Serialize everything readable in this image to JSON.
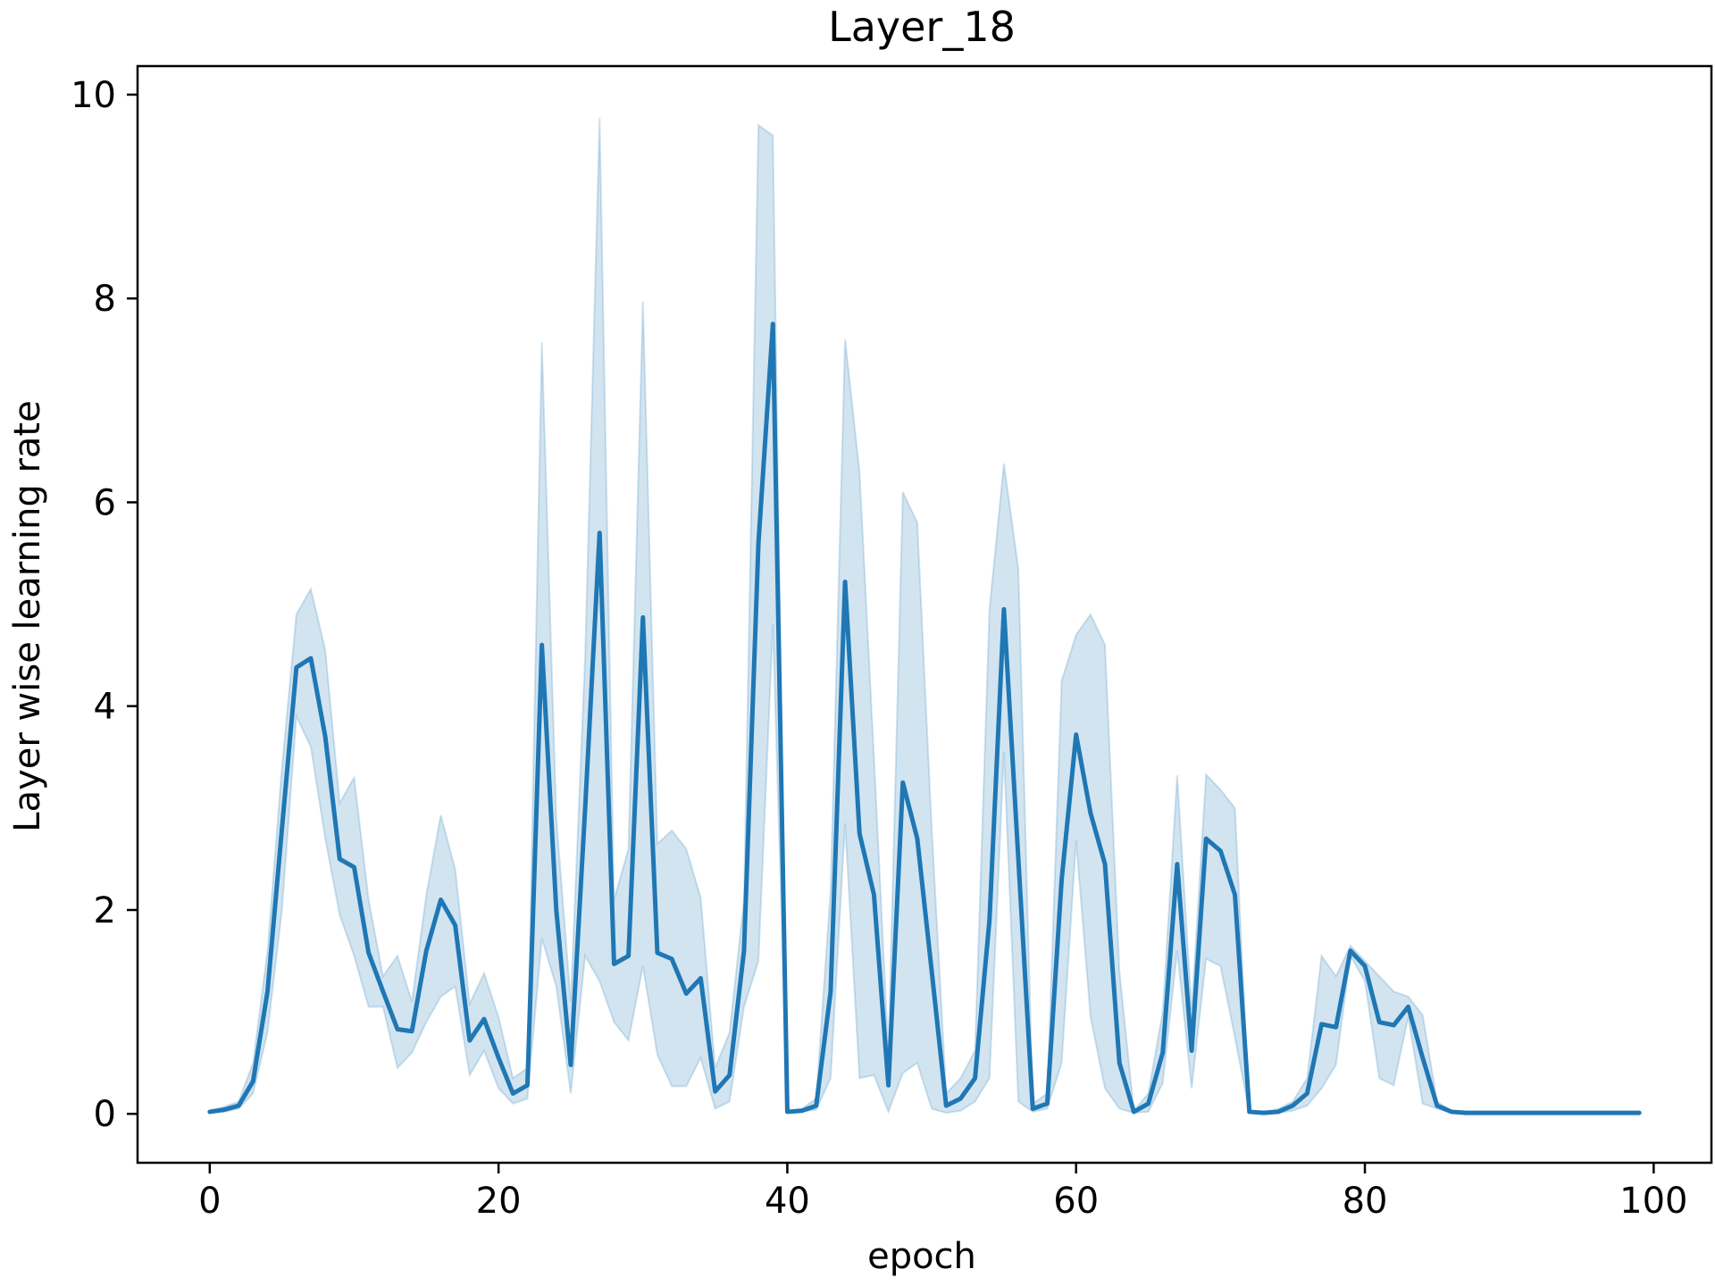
{
  "colors": {
    "line": "#1f77b4",
    "band": "#1f77b4",
    "axes": "#000000",
    "background": "#ffffff"
  },
  "chart_data": {
    "type": "line",
    "title": "Layer_18",
    "xlabel": "epoch",
    "ylabel": "Layer wise learning rate",
    "xlim": [
      -5,
      104
    ],
    "ylim": [
      -0.48,
      10.28
    ],
    "x_ticks": [
      0,
      20,
      40,
      60,
      80,
      100
    ],
    "y_ticks": [
      0,
      2,
      4,
      6,
      8,
      10
    ],
    "grid": false,
    "legend": "none",
    "series": [
      {
        "x": [
          0,
          1,
          2,
          3,
          4,
          5,
          6,
          7,
          8,
          9,
          10,
          11,
          12,
          13,
          14,
          15,
          16,
          17,
          18,
          19,
          20,
          21,
          22,
          23,
          24,
          25,
          26,
          27,
          28,
          29,
          30,
          31,
          32,
          33,
          34,
          35,
          36,
          37,
          38,
          39,
          40,
          41,
          42,
          43,
          44,
          45,
          46,
          47,
          48,
          49,
          50,
          51,
          52,
          53,
          54,
          55,
          56,
          57,
          58,
          59,
          60,
          61,
          62,
          63,
          64,
          65,
          66,
          67,
          68,
          69,
          70,
          71,
          72,
          73,
          74,
          75,
          76,
          77,
          78,
          79,
          80,
          81,
          82,
          83,
          84,
          85,
          86,
          87,
          88,
          89,
          90,
          91,
          92,
          93,
          94,
          95,
          96,
          97,
          98,
          99
        ],
        "y": [
          0.02,
          0.04,
          0.08,
          0.32,
          1.2,
          2.8,
          4.38,
          4.47,
          3.7,
          2.5,
          2.42,
          1.58,
          1.2,
          0.83,
          0.81,
          1.6,
          2.1,
          1.85,
          0.72,
          0.93,
          0.55,
          0.2,
          0.28,
          4.6,
          2.0,
          0.48,
          3.0,
          5.7,
          1.47,
          1.55,
          4.87,
          1.58,
          1.52,
          1.18,
          1.33,
          0.22,
          0.38,
          1.6,
          5.6,
          7.75,
          0.02,
          0.03,
          0.08,
          1.2,
          5.22,
          2.75,
          2.15,
          0.28,
          3.25,
          2.7,
          1.4,
          0.08,
          0.15,
          0.35,
          1.9,
          4.95,
          2.5,
          0.05,
          0.1,
          2.3,
          3.72,
          2.95,
          2.45,
          0.5,
          0.02,
          0.1,
          0.6,
          2.45,
          0.62,
          2.7,
          2.58,
          2.15,
          0.02,
          0.01,
          0.02,
          0.08,
          0.2,
          0.88,
          0.85,
          1.6,
          1.45,
          0.9,
          0.87,
          1.05,
          0.55,
          0.08,
          0.02,
          0.01,
          0.01,
          0.01,
          0.01,
          0.01,
          0.01,
          0.01,
          0.01,
          0.01,
          0.01,
          0.01,
          0.01,
          0.01
        ],
        "lower": [
          0.01,
          0.02,
          0.05,
          0.2,
          0.8,
          2.0,
          3.9,
          3.6,
          2.7,
          1.95,
          1.55,
          1.05,
          1.05,
          0.45,
          0.6,
          0.9,
          1.15,
          1.25,
          0.38,
          0.62,
          0.25,
          0.1,
          0.15,
          1.72,
          1.25,
          0.2,
          1.55,
          1.3,
          0.9,
          0.72,
          1.45,
          0.58,
          0.27,
          0.27,
          0.55,
          0.05,
          0.12,
          1.05,
          1.5,
          4.8,
          0.01,
          0.02,
          0.04,
          0.35,
          2.85,
          0.35,
          0.38,
          0.02,
          0.4,
          0.5,
          0.05,
          0.01,
          0.03,
          0.12,
          0.35,
          3.55,
          0.12,
          0.02,
          0.05,
          0.5,
          2.68,
          0.95,
          0.25,
          0.05,
          0.01,
          0.02,
          0.3,
          1.6,
          0.25,
          1.52,
          1.45,
          0.75,
          0.01,
          0.01,
          0.01,
          0.03,
          0.08,
          0.25,
          0.48,
          1.55,
          1.3,
          0.35,
          0.28,
          0.95,
          0.1,
          0.05,
          0.01,
          0.01,
          0.01,
          0.01,
          0.01,
          0.01,
          0.01,
          0.01,
          0.01,
          0.01,
          0.01,
          0.01,
          0.01,
          0.01
        ],
        "upper": [
          0.03,
          0.07,
          0.12,
          0.5,
          1.6,
          3.4,
          4.9,
          5.15,
          4.55,
          3.05,
          3.3,
          2.1,
          1.35,
          1.55,
          1.1,
          2.15,
          2.93,
          2.4,
          1.08,
          1.38,
          0.95,
          0.35,
          0.45,
          7.57,
          2.9,
          1.1,
          4.5,
          9.77,
          2.1,
          2.6,
          7.97,
          2.65,
          2.78,
          2.6,
          2.12,
          0.45,
          0.8,
          2.1,
          9.7,
          9.6,
          0.03,
          0.05,
          0.15,
          2.2,
          7.6,
          6.3,
          3.5,
          0.6,
          6.1,
          5.8,
          2.8,
          0.2,
          0.35,
          0.62,
          4.95,
          6.38,
          5.35,
          0.1,
          0.2,
          4.25,
          4.7,
          4.9,
          4.6,
          1.4,
          0.03,
          0.2,
          1.0,
          3.32,
          1.02,
          3.33,
          3.18,
          3.0,
          0.03,
          0.02,
          0.05,
          0.12,
          0.35,
          1.55,
          1.35,
          1.65,
          1.5,
          1.35,
          1.2,
          1.15,
          0.97,
          0.12,
          0.03,
          0.02,
          0.02,
          0.02,
          0.02,
          0.02,
          0.02,
          0.02,
          0.02,
          0.02,
          0.02,
          0.02,
          0.02,
          0.02
        ]
      }
    ]
  }
}
